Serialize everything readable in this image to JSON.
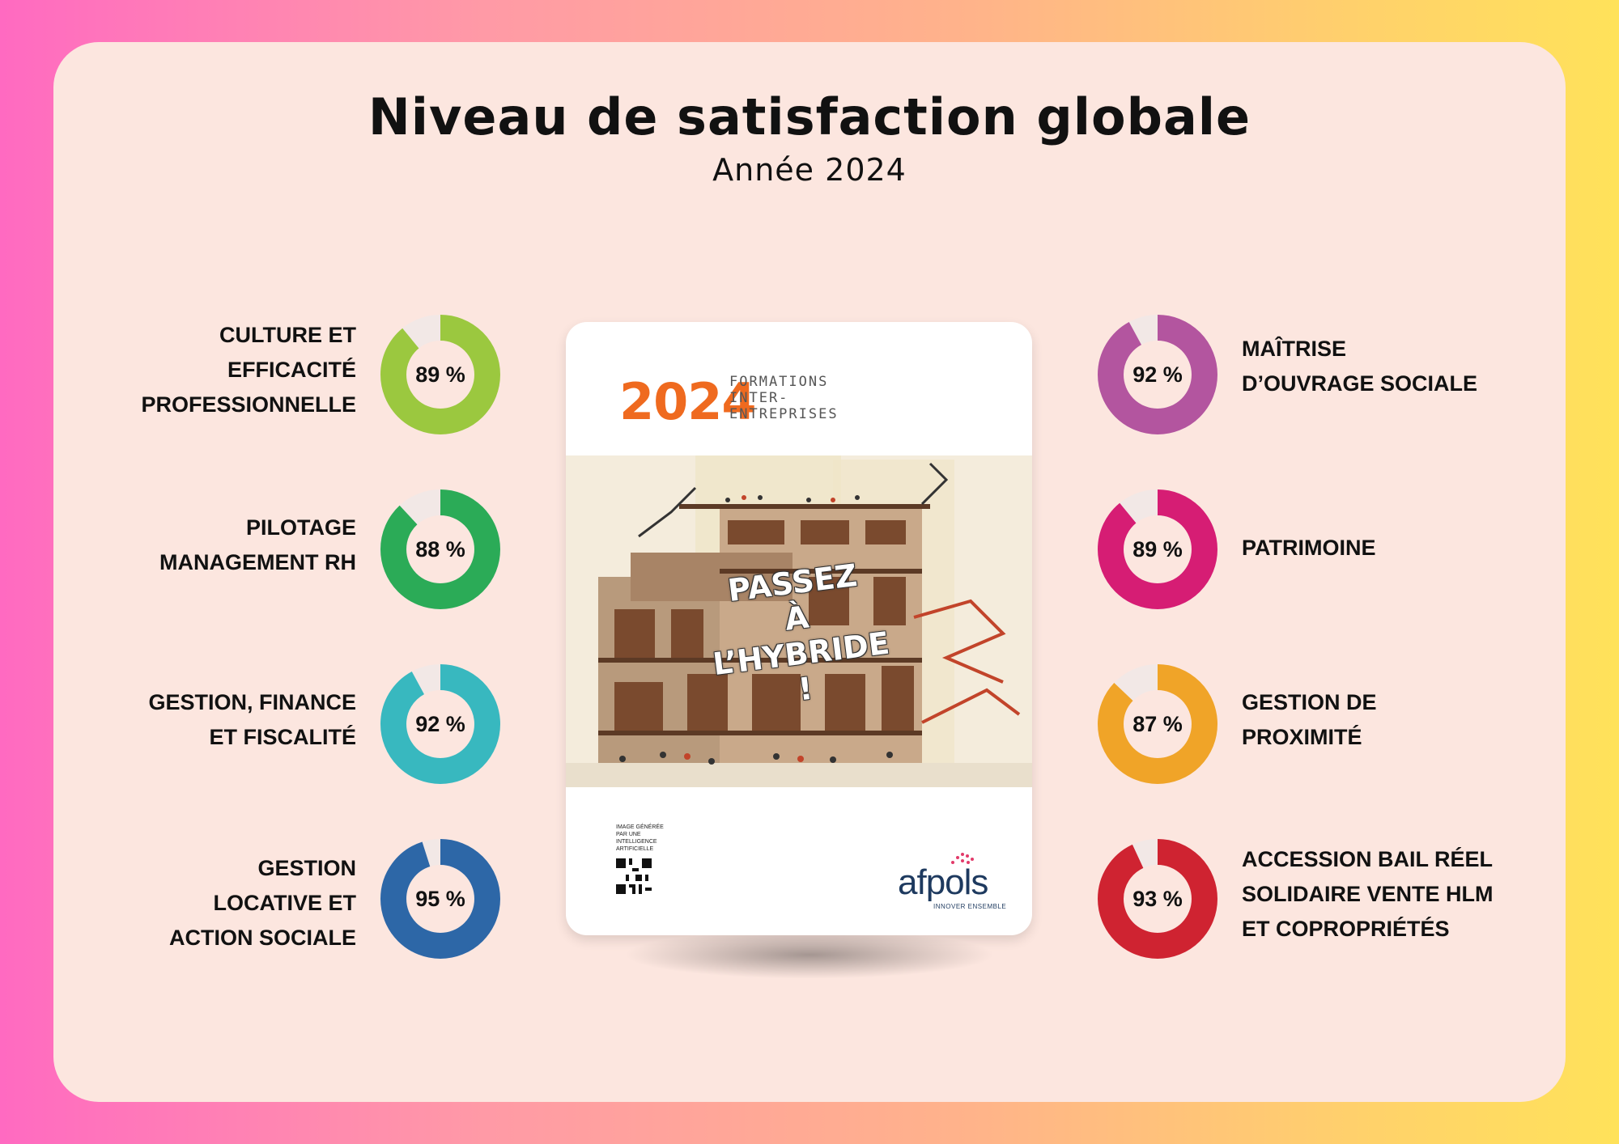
{
  "header": {
    "title": "Niveau de satisfaction globale",
    "subtitle": "Année 2024"
  },
  "chart_data": {
    "type": "pie",
    "title": "Niveau de satisfaction globale",
    "subtitle": "Année 2024",
    "unit": "%",
    "items": [
      {
        "label": "CULTURE ET\nEFFICACITÉ\nPROFESSIONNELLE",
        "value": 89,
        "display": "89 %",
        "color": "#9bc83f"
      },
      {
        "label": "PILOTAGE \nMANAGEMENT RH",
        "value": 88,
        "display": "88 %",
        "color": "#2bab57"
      },
      {
        "label": "GESTION, FINANCE\nET FISCALITÉ",
        "value": 92,
        "display": "92 %",
        "color": "#38b8bf"
      },
      {
        "label": "GESTION\nLOCATIVE ET \nACTION SOCIALE",
        "value": 95,
        "display": "95 %",
        "color": "#2d67a7"
      },
      {
        "label": "MAÎTRISE\nD’OUVRAGE  SOCIALE",
        "value": 92,
        "display": "92 %",
        "color": "#b3559f"
      },
      {
        "label": "PATRIMOINE",
        "value": 89,
        "display": "89 %",
        "color": "#d61d74"
      },
      {
        "label": "GESTION DE\nPROXIMITÉ",
        "value": 87,
        "display": "87 %",
        "color": "#f0a428"
      },
      {
        "label": "ACCESSION BAIL RÉEL\nSOLIDAIRE VENTE HLM\nET COPROPRIÉTÉS",
        "value": 93,
        "display": "93 %",
        "color": "#cf2331"
      }
    ],
    "remainder_color": "#f2e8e6"
  },
  "brochure": {
    "year": "2024",
    "lines": [
      "FORMATIONS",
      "INTER-",
      "ENTREPRISES"
    ],
    "headline": "PASSEZ\nÀ L’HYBRIDE !",
    "note": "IMAGE GÉNÉRÉE\nPAR UNE INTELLIGENCE\nARTIFICIELLE",
    "logo": "afpols",
    "tagline": "INNOVER ENSEMBLE",
    "accent": "#ef6a1f"
  }
}
